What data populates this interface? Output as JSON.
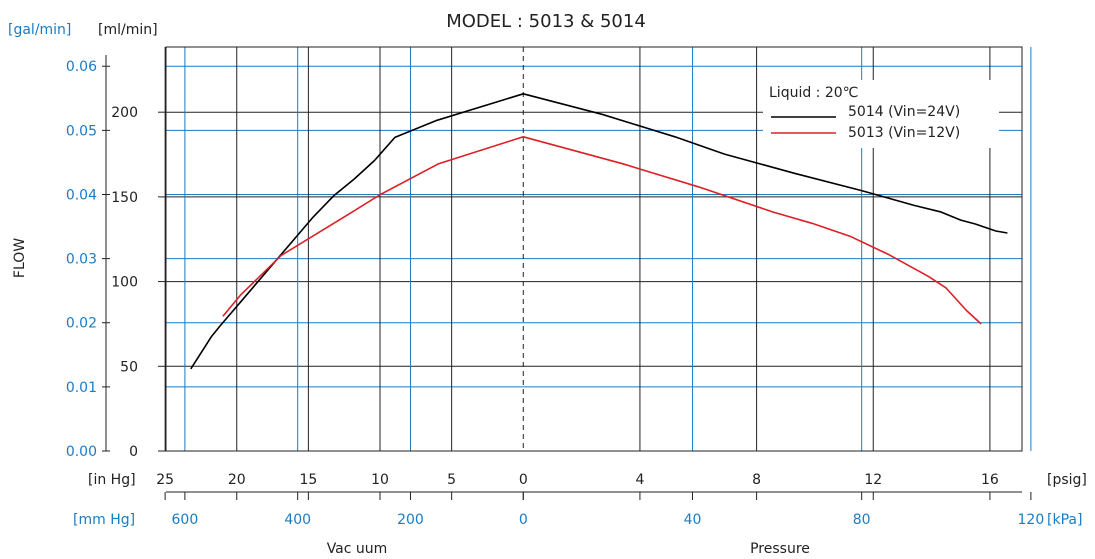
{
  "chart_data": {
    "type": "line",
    "title": "MODEL : 5013 & 5014",
    "ylabel": "FLOW",
    "yunits_left": "[gal/min]",
    "yunits_right": "[ml/min]",
    "xunits": {
      "in_hg": "[in Hg]",
      "psig": "[psig]",
      "mm_hg": "[mm Hg]",
      "kpa": "[kPa]"
    },
    "xlabels": {
      "vacuum": "Vac uum",
      "pressure": "Pressure"
    },
    "yaxis_gal": {
      "ticks": [
        "0.00",
        "0.01",
        "0.02",
        "0.03",
        "0.04",
        "0.05",
        "0.06"
      ],
      "range": [
        0,
        0.063
      ]
    },
    "yaxis_ml": {
      "ticks": [
        "0",
        "50",
        "100",
        "150",
        "200"
      ]
    },
    "xaxis": {
      "pressure_range_psig": [
        -12.25,
        17.1
      ],
      "in_hg_ticks": [
        "25",
        "20",
        "15",
        "10",
        "5",
        "0"
      ],
      "psig_ticks": [
        "4",
        "8",
        "12",
        "16"
      ],
      "mm_hg_ticks": [
        "600",
        "400",
        "200",
        "0"
      ],
      "kpa_ticks": [
        "40",
        "80",
        "120"
      ]
    },
    "legend": {
      "title": "Liquid : 20℃",
      "position": "top-right"
    },
    "series": [
      {
        "name": "5014 (Vin=24V)",
        "color": "#000000",
        "points_psig_gal": [
          [
            -11.4,
            0.0128
          ],
          [
            -10.7,
            0.0178
          ],
          [
            -10.4,
            0.0195
          ],
          [
            -9.7,
            0.0232
          ],
          [
            -8.5,
            0.0296
          ],
          [
            -7.2,
            0.0365
          ],
          [
            -6.5,
            0.0398
          ],
          [
            -5.8,
            0.0424
          ],
          [
            -5.1,
            0.0453
          ],
          [
            -4.4,
            0.0489
          ],
          [
            -3.0,
            0.0515
          ],
          [
            0.0,
            0.0557
          ],
          [
            2.7,
            0.0525
          ],
          [
            5.2,
            0.049
          ],
          [
            6.9,
            0.0463
          ],
          [
            9.3,
            0.0433
          ],
          [
            11.6,
            0.0406
          ],
          [
            13.4,
            0.0383
          ],
          [
            14.3,
            0.0373
          ],
          [
            15.0,
            0.036
          ],
          [
            15.5,
            0.0354
          ],
          [
            16.2,
            0.0343
          ],
          [
            16.6,
            0.034
          ]
        ]
      },
      {
        "name": "5013 (Vin=12V)",
        "color": "#dd1f26",
        "points_psig_gal": [
          [
            -10.3,
            0.021
          ],
          [
            -9.7,
            0.0243
          ],
          [
            -8.3,
            0.0305
          ],
          [
            -6.0,
            0.0369
          ],
          [
            -4.9,
            0.04
          ],
          [
            -2.9,
            0.0448
          ],
          [
            0.0,
            0.049
          ],
          [
            3.4,
            0.0448
          ],
          [
            6.0,
            0.0412
          ],
          [
            8.6,
            0.0372
          ],
          [
            9.9,
            0.0355
          ],
          [
            11.2,
            0.0335
          ],
          [
            12.5,
            0.0307
          ],
          [
            13.9,
            0.0272
          ],
          [
            14.5,
            0.0254
          ],
          [
            15.2,
            0.0219
          ],
          [
            15.7,
            0.0198
          ]
        ]
      }
    ],
    "grid": true
  }
}
